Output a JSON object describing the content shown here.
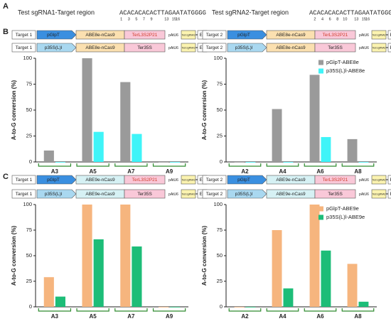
{
  "panel_labels": [
    "A",
    "B",
    "C"
  ],
  "sequences": [
    {
      "label": "Test sgRNA1-Target region",
      "protospacer": "ACACACACACTTAGAATATG",
      "pam": "GGG",
      "positions": [
        1,
        3,
        5,
        7,
        9,
        13,
        15,
        16
      ],
      "color": "#2e9a2e",
      "pam_color": "#8a3fbf"
    },
    {
      "label": "Test sgRNA2-Target region",
      "protospacer": "ACACACACACTTAGAATATG",
      "pam": "GGG",
      "positions": [
        2,
        4,
        6,
        8,
        10,
        13,
        15,
        16
      ],
      "color": "#2e9a2e",
      "pam_color": "#8a3fbf"
    }
  ],
  "constructs": [
    {
      "items": [
        "Target 1",
        "pGlpT",
        "ABE8e-nCas9",
        "TerL3S2P21",
        "pAtU6",
        "Test sgRNA1",
        "EL"
      ],
      "promoter_color": "#3a8fe0",
      "cas_color": "#fbe0b0",
      "ter_color": "#f9c8d8"
    },
    {
      "items": [
        "Target 1",
        "p35S(L)l",
        "ABE8e-nCas9",
        "Ter35S",
        "pAtU6",
        "Test sgRNA1",
        "EL"
      ],
      "promoter_color": "#a9d8f0",
      "cas_color": "#fbe0b0",
      "ter_color": "#f9c8d8"
    },
    {
      "items": [
        "Target 2",
        "pGlpT",
        "ABE8e-nCas9",
        "TerL3S2P21",
        "pAtU6",
        "Test sgRNA2",
        "EL"
      ],
      "promoter_color": "#3a8fe0",
      "cas_color": "#fbe0b0",
      "ter_color": "#f9c8d8"
    },
    {
      "items": [
        "Target 2",
        "p35S(L)l",
        "ABE8e-nCas9",
        "Ter35S",
        "pAtU6",
        "Test sgRNA2",
        "EL"
      ],
      "promoter_color": "#a9d8f0",
      "cas_color": "#fbe0b0",
      "ter_color": "#f9c8d8"
    },
    {
      "items": [
        "Target 1",
        "pGlpT",
        "ABE9e-nCas9",
        "TerL3S2P21",
        "pAtU6",
        "Test sgRNA1",
        "EL"
      ],
      "promoter_color": "#3a8fe0",
      "cas_color": "#d6f1f4",
      "ter_color": "#f9c8d8"
    },
    {
      "items": [
        "Target 1",
        "p35S(L)l",
        "ABE9e-nCas9",
        "Ter35S",
        "pAtU6",
        "Test sgRNA1",
        "EL"
      ],
      "promoter_color": "#a9d8f0",
      "cas_color": "#d6f1f4",
      "ter_color": "#f9c8d8"
    },
    {
      "items": [
        "Target 2",
        "pGlpT",
        "ABE9e-nCas9",
        "TerL3S2P21",
        "pAtU6",
        "Test sgRNA2",
        "EL"
      ],
      "promoter_color": "#3a8fe0",
      "cas_color": "#d6f1f4",
      "ter_color": "#f9c8d8"
    },
    {
      "items": [
        "Target 2",
        "p35S(L)l",
        "ABE9e-nCas9",
        "Ter35S",
        "pAtU6",
        "Test sgRNA2",
        "EL"
      ],
      "promoter_color": "#a9d8f0",
      "cas_color": "#d6f1f4",
      "ter_color": "#f9c8d8"
    }
  ],
  "chart_data": [
    {
      "type": "bar",
      "ylabel": "A-to-G conversion (%)",
      "categories": [
        "A3",
        "A5",
        "A7",
        "A9"
      ],
      "series": [
        {
          "color": "#9a9a9a",
          "values": [
            11,
            100,
            77,
            0
          ]
        },
        {
          "color": "#3ff4f8",
          "values": [
            0,
            29,
            27,
            0
          ]
        }
      ],
      "ylim": [
        0,
        100
      ],
      "yticks": [
        0,
        25,
        50,
        75,
        100
      ]
    },
    {
      "type": "bar",
      "ylabel": "A-to-G conversion (%)",
      "categories": [
        "A2",
        "A4",
        "A6",
        "A8"
      ],
      "series": [
        {
          "name": "pGlpT-ABE8e",
          "color": "#9a9a9a",
          "values": [
            0,
            51,
            84,
            22
          ]
        },
        {
          "name": "p35S(L)l-ABE8e",
          "color": "#3ff4f8",
          "values": [
            0,
            0,
            24,
            0
          ]
        }
      ],
      "ylim": [
        0,
        100
      ],
      "yticks": [
        0,
        25,
        50,
        75,
        100
      ],
      "legend": "upper right"
    },
    {
      "type": "bar",
      "ylabel": "A-to-G conversion (%)",
      "categories": [
        "A3",
        "A5",
        "A7",
        "A9"
      ],
      "series": [
        {
          "color": "#f6b57e",
          "values": [
            29,
            100,
            100,
            0
          ]
        },
        {
          "color": "#1dbd78",
          "values": [
            10,
            66,
            59,
            0
          ]
        }
      ],
      "ylim": [
        0,
        100
      ],
      "yticks": [
        0,
        25,
        50,
        75,
        100
      ]
    },
    {
      "type": "bar",
      "ylabel": "A-to-G conversion (%)",
      "categories": [
        "A2",
        "A4",
        "A6",
        "A8"
      ],
      "series": [
        {
          "name": "pGlpT-ABE9e",
          "color": "#f6b57e",
          "values": [
            0,
            75,
            100,
            42
          ]
        },
        {
          "name": "p35S(L)l-ABE9e",
          "color": "#1dbd78",
          "values": [
            0,
            18,
            55,
            5
          ]
        }
      ],
      "ylim": [
        0,
        100
      ],
      "yticks": [
        0,
        25,
        50,
        75,
        100
      ],
      "legend": "upper right"
    }
  ]
}
